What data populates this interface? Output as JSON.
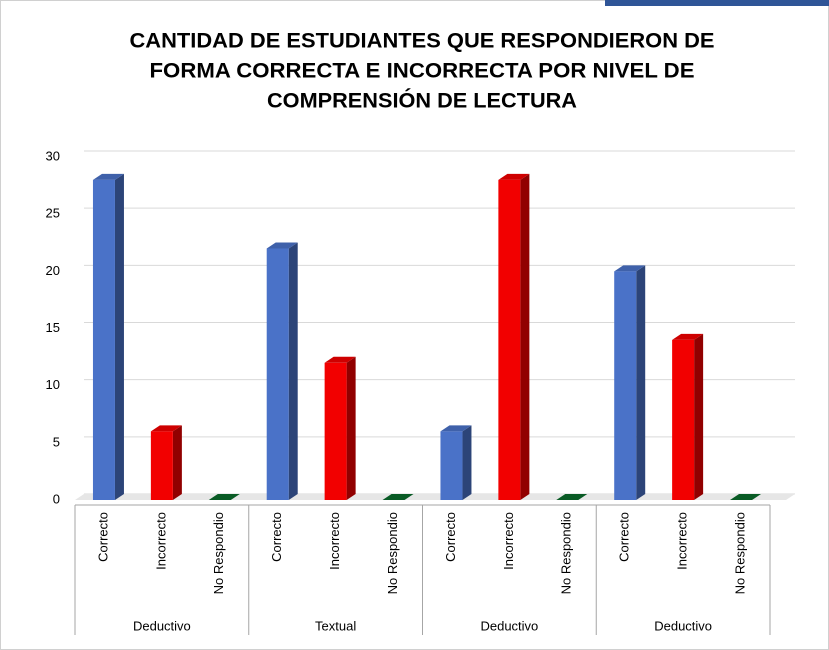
{
  "chart_data": {
    "type": "bar3d",
    "title": [
      "CANTIDAD DE ESTUDIANTES QUE RESPONDIERON DE",
      "FORMA CORRECTA E INCORRECTA POR NIVEL DE",
      "COMPRENSIÓN DE LECTURA"
    ],
    "categories": [
      "Correcto",
      "Incorrecto",
      "No Respondio",
      "Correcto",
      "Incorrecto",
      "No Respondio",
      "Correcto",
      "Incorrecto",
      "No Respondio",
      "Correcto",
      "Incorrecto",
      "No Respondio"
    ],
    "groups": [
      "Deductivo",
      "Textual",
      "Deductivo",
      "Deductivo"
    ],
    "values": [
      28,
      6,
      0,
      22,
      12,
      0,
      6,
      28,
      0,
      20,
      14,
      0
    ],
    "colors": [
      "#4a72c8",
      "#f20000",
      "#0b6b2c"
    ],
    "ylim": [
      0,
      30
    ],
    "yticks": [
      0,
      5,
      10,
      15,
      20,
      25,
      30
    ],
    "grid": true
  }
}
